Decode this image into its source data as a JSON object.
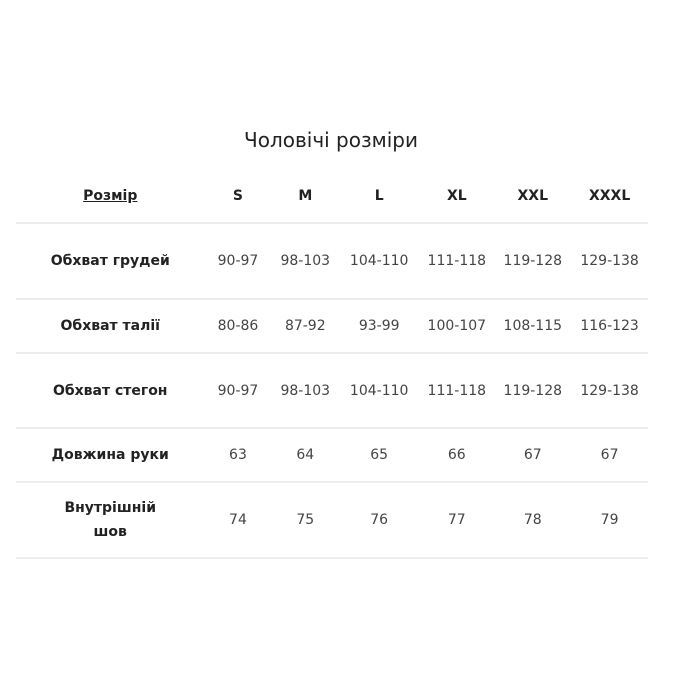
{
  "title": "Чоловічі розміри",
  "header": {
    "label": "Розмір",
    "sizes": [
      "S",
      "M",
      "L",
      "XL",
      "XXL",
      "XXXL"
    ]
  },
  "rows": [
    {
      "label": "Обхват грудей",
      "values": [
        "90-97",
        "98-103",
        "104-110",
        "111-118",
        "119-128",
        "129-138"
      ]
    },
    {
      "label": "Обхват талії",
      "values": [
        "80-86",
        "87-92",
        "93-99",
        "100-107",
        "108-115",
        "116-123"
      ]
    },
    {
      "label": "Обхват стегон",
      "values": [
        "90-97",
        "98-103",
        "104-110",
        "111-118",
        "119-128",
        "129-138"
      ]
    },
    {
      "label": "Довжина руки",
      "values": [
        "63",
        "64",
        "65",
        "66",
        "67",
        "67"
      ]
    },
    {
      "label": "Внутрішній шов",
      "values": [
        "74",
        "75",
        "76",
        "77",
        "78",
        "79"
      ]
    }
  ]
}
